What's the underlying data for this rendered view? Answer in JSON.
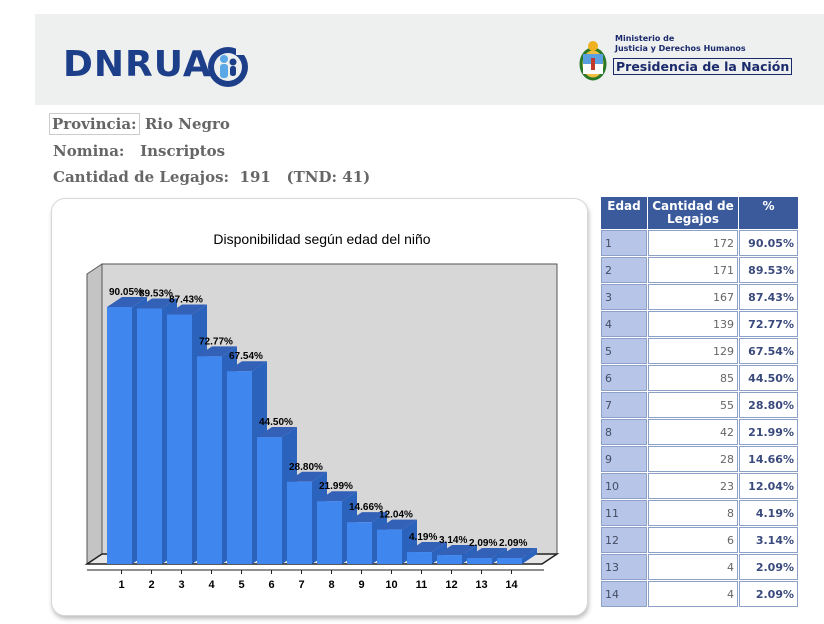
{
  "header": {
    "logo_text": "DNRUA",
    "gov_line1": "Ministerio de",
    "gov_line2": "Justicia y Derechos Humanos",
    "gov_line3": "Presidencia de la Nación"
  },
  "info": {
    "provincia_label": "Provincia:",
    "provincia_value": "Rio Negro",
    "nomina_label": "Nomina:",
    "nomina_value": "Inscriptos",
    "cantidad_label": "Cantidad de Legajos:",
    "cantidad_value": "191",
    "tnd_value": "(TND: 41)"
  },
  "table": {
    "headers": [
      "Edad",
      "Cantidad de Legajos",
      "%"
    ],
    "rows": [
      [
        "1",
        "172",
        "90.05%"
      ],
      [
        "2",
        "171",
        "89.53%"
      ],
      [
        "3",
        "167",
        "87.43%"
      ],
      [
        "4",
        "139",
        "72.77%"
      ],
      [
        "5",
        "129",
        "67.54%"
      ],
      [
        "6",
        "85",
        "44.50%"
      ],
      [
        "7",
        "55",
        "28.80%"
      ],
      [
        "8",
        "42",
        "21.99%"
      ],
      [
        "9",
        "28",
        "14.66%"
      ],
      [
        "10",
        "23",
        "12.04%"
      ],
      [
        "11",
        "8",
        "4.19%"
      ],
      [
        "12",
        "6",
        "3.14%"
      ],
      [
        "13",
        "4",
        "2.09%"
      ],
      [
        "14",
        "4",
        "2.09%"
      ]
    ]
  },
  "chart_data": {
    "type": "bar",
    "title": "Disponibilidad según edad del niño",
    "xlabel": "",
    "ylabel": "",
    "categories": [
      "1",
      "2",
      "3",
      "4",
      "5",
      "6",
      "7",
      "8",
      "9",
      "10",
      "11",
      "12",
      "13",
      "14"
    ],
    "values": [
      90.05,
      89.53,
      87.43,
      72.77,
      67.54,
      44.5,
      28.8,
      21.99,
      14.66,
      12.04,
      4.19,
      3.14,
      2.09,
      2.09
    ],
    "labels": [
      "90.05%",
      "89.53%",
      "87.43%",
      "72.77%",
      "67.54%",
      "44.50%",
      "28.80%",
      "21.99%",
      "14.66%",
      "12.04%",
      "4.19%",
      "3.14%",
      "2.09%",
      "2.09%"
    ],
    "ylim": [
      0,
      100
    ],
    "grid": false,
    "bar_color": "#3f86ee",
    "bar_side_color": "#2b62bb",
    "bar_top_color": "#3361b8",
    "wall_color": "#d7d7d7"
  }
}
